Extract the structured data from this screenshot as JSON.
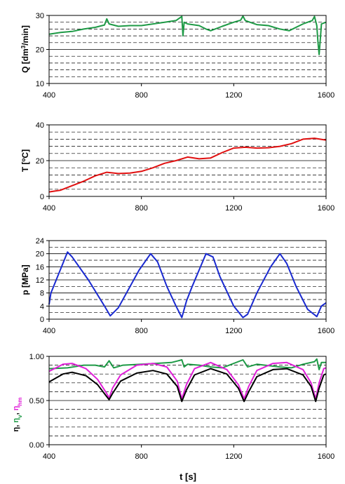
{
  "chart_data": [
    {
      "type": "line",
      "ylabel": "Q [dm³/min]",
      "xlim": [
        400,
        1600
      ],
      "ylim": [
        10,
        30
      ],
      "x_ticks": [
        400,
        800,
        1200,
        1600
      ],
      "y_ticks": [
        10,
        20,
        30
      ],
      "grid": "horizontal dashed",
      "series": [
        {
          "color": "#1e9a46",
          "x": [
            400,
            450,
            500,
            550,
            600,
            640,
            650,
            660,
            700,
            750,
            800,
            850,
            900,
            950,
            975,
            980,
            985,
            1000,
            1050,
            1080,
            1100,
            1150,
            1200,
            1230,
            1240,
            1250,
            1270,
            1300,
            1350,
            1400,
            1440,
            1500,
            1540,
            1550,
            1560,
            1565,
            1570,
            1575,
            1580,
            1600
          ],
          "y": [
            24.5,
            25,
            25.3,
            26,
            26.5,
            27.2,
            29,
            27.5,
            26.8,
            27,
            27,
            27.5,
            28,
            28.5,
            29.7,
            24,
            28,
            27.5,
            27,
            26,
            25.5,
            26.8,
            28,
            28.6,
            29.8,
            28.5,
            28,
            27.3,
            27,
            26,
            25.5,
            27.5,
            28.5,
            29.7,
            27,
            22,
            18.5,
            23,
            27.5,
            28
          ]
        }
      ]
    },
    {
      "type": "line",
      "ylabel": "T [°C]",
      "xlim": [
        400,
        1600
      ],
      "ylim": [
        0,
        40
      ],
      "x_ticks": [
        400,
        800,
        1200,
        1600
      ],
      "y_ticks": [
        0,
        20,
        40
      ],
      "grid": "horizontal dashed",
      "series": [
        {
          "color": "#e01010",
          "x": [
            400,
            450,
            500,
            550,
            600,
            650,
            700,
            750,
            800,
            850,
            900,
            950,
            1000,
            1050,
            1100,
            1150,
            1200,
            1250,
            1300,
            1350,
            1400,
            1450,
            1500,
            1550,
            1600
          ],
          "y": [
            2.5,
            3.5,
            6,
            8.5,
            11.5,
            13.5,
            12.8,
            13,
            14,
            16,
            18.5,
            20,
            22,
            21,
            21.5,
            24.5,
            27,
            27.5,
            27,
            27.2,
            28,
            29.5,
            32,
            32.5,
            31.5
          ]
        }
      ]
    },
    {
      "type": "line",
      "ylabel": "p [MPa]",
      "xlim": [
        400,
        1600
      ],
      "ylim": [
        0,
        24
      ],
      "x_ticks": [
        400,
        800,
        1200,
        1600
      ],
      "y_ticks": [
        0,
        4,
        8,
        12,
        16,
        20,
        24
      ],
      "grid": "horizontal dashed",
      "series": [
        {
          "color": "#1a2ad0",
          "x": [
            400,
            408,
            480,
            500,
            570,
            640,
            665,
            700,
            790,
            840,
            870,
            910,
            950,
            975,
            995,
            1020,
            1080,
            1110,
            1140,
            1200,
            1240,
            1260,
            1300,
            1360,
            1400,
            1430,
            1470,
            1520,
            1560,
            1580,
            1600
          ],
          "y": [
            4.5,
            8,
            20.5,
            19,
            12,
            4,
            1,
            3.5,
            15,
            20,
            17.5,
            10,
            4,
            0.5,
            5.5,
            10,
            20,
            19,
            13,
            4,
            0.5,
            1.5,
            8,
            16,
            20,
            17,
            10,
            3,
            0.8,
            4,
            5
          ]
        }
      ]
    },
    {
      "type": "line",
      "ylabel": "η, ηv, ηhm",
      "xlabel": "t [s]",
      "xlim": [
        400,
        1600
      ],
      "ylim": [
        0,
        1
      ],
      "x_ticks": [
        400,
        800,
        1200,
        1600
      ],
      "y_ticks": [
        0,
        0.5,
        1
      ],
      "y_tick_labels": [
        "0.00",
        "0.50",
        "1.00"
      ],
      "grid": "horizontal dashed",
      "series": [
        {
          "color": "#1e9a46",
          "x": [
            400,
            480,
            550,
            600,
            640,
            660,
            680,
            720,
            800,
            860,
            930,
            975,
            985,
            1000,
            1050,
            1100,
            1150,
            1240,
            1260,
            1300,
            1400,
            1450,
            1500,
            1550,
            1560,
            1570,
            1580,
            1600
          ],
          "y": [
            0.86,
            0.87,
            0.9,
            0.9,
            0.88,
            0.95,
            0.87,
            0.9,
            0.91,
            0.92,
            0.93,
            0.96,
            0.88,
            0.91,
            0.9,
            0.88,
            0.87,
            0.96,
            0.88,
            0.91,
            0.88,
            0.87,
            0.91,
            0.94,
            0.97,
            0.85,
            0.93,
            0.93
          ]
        },
        {
          "color": "#e020d8",
          "x": [
            400,
            460,
            500,
            560,
            610,
            645,
            660,
            675,
            710,
            780,
            850,
            910,
            955,
            975,
            995,
            1030,
            1100,
            1170,
            1220,
            1245,
            1265,
            1300,
            1370,
            1430,
            1500,
            1535,
            1555,
            1570,
            1590,
            1600
          ],
          "y": [
            0.83,
            0.91,
            0.92,
            0.86,
            0.74,
            0.6,
            0.53,
            0.64,
            0.79,
            0.9,
            0.92,
            0.88,
            0.72,
            0.52,
            0.68,
            0.86,
            0.93,
            0.85,
            0.68,
            0.52,
            0.66,
            0.84,
            0.92,
            0.93,
            0.85,
            0.7,
            0.52,
            0.7,
            0.86,
            0.87
          ]
        },
        {
          "color": "#000000",
          "x": [
            400,
            460,
            500,
            560,
            610,
            645,
            660,
            675,
            710,
            780,
            850,
            910,
            955,
            975,
            995,
            1030,
            1100,
            1170,
            1220,
            1245,
            1265,
            1300,
            1370,
            1430,
            1500,
            1535,
            1555,
            1570,
            1590,
            1600
          ],
          "y": [
            0.71,
            0.8,
            0.82,
            0.78,
            0.68,
            0.56,
            0.51,
            0.58,
            0.72,
            0.81,
            0.84,
            0.8,
            0.66,
            0.49,
            0.62,
            0.79,
            0.86,
            0.8,
            0.64,
            0.49,
            0.6,
            0.77,
            0.85,
            0.86,
            0.79,
            0.66,
            0.49,
            0.64,
            0.79,
            0.8
          ]
        }
      ]
    }
  ]
}
